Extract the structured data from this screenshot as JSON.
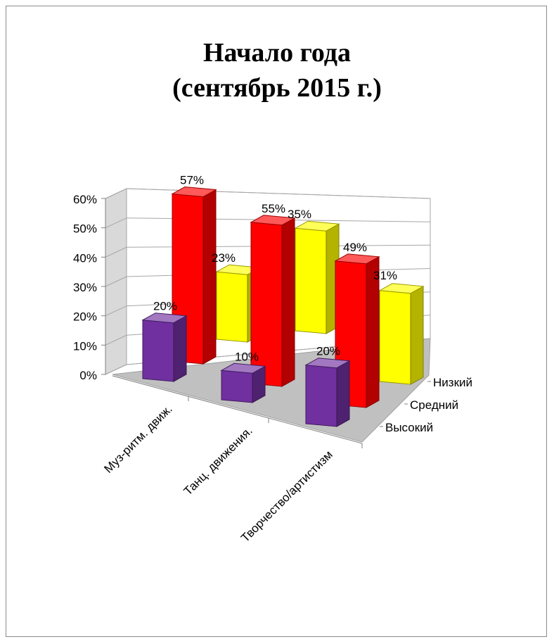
{
  "chart_data": {
    "type": "bar",
    "style": "3d-column",
    "title_lines": [
      "Начало года",
      "(сентябрь 2015 г.)"
    ],
    "categories": [
      "Муз-ритм. движ.",
      "Танц. движения.",
      "Творчество/артистизм"
    ],
    "series": [
      {
        "name": "Низкий",
        "values": [
          23,
          35,
          31
        ],
        "color": "#ffff00"
      },
      {
        "name": "Средний",
        "values": [
          57,
          55,
          49
        ],
        "color": "#ff0000"
      },
      {
        "name": "Высокий",
        "values": [
          20,
          10,
          20
        ],
        "color": "#7030a0"
      }
    ],
    "data_labels": [
      "23%",
      "35%",
      "31%",
      "57%",
      "55%",
      "49%",
      "20%",
      "10%",
      "20%"
    ],
    "y_ticks": [
      "0%",
      "10%",
      "20%",
      "30%",
      "40%",
      "50%",
      "60%"
    ],
    "ylim": [
      0,
      60
    ],
    "grid": true,
    "legend_position": "right"
  }
}
